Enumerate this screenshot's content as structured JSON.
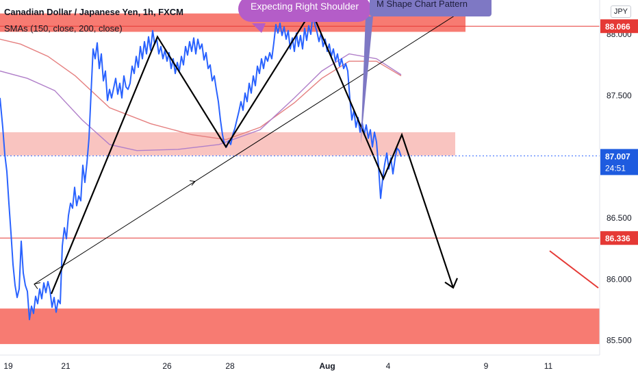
{
  "header": {
    "symbol": "Canadian Dollar / Japanese Yen, 1h, FXCM",
    "indicator": "SMAs (150, close, 200, close)",
    "currency_badge": "JPY"
  },
  "annotations": {
    "callout": "Expecting Right Shoulder",
    "note": "M Shape Chart Pattern"
  },
  "colors": {
    "price": "#2962ff",
    "zone": "#f77b72",
    "zone_light": "#f9c4c0",
    "level": "#e53935",
    "sma150": "#b07fc9",
    "sma200": "#e57f7f",
    "pattern": "#000000",
    "callout": "#b45dc8",
    "note": "#7e78c4",
    "current_label": "#1e5bdf"
  },
  "chart_data": {
    "type": "line",
    "title": "Canadian Dollar / Japanese Yen, 1h, FXCM",
    "xlabel": "",
    "ylabel": "",
    "ylim": [
      85.38,
      88.28
    ],
    "x_ticks": [
      "19",
      "21",
      "26",
      "28",
      "Aug",
      "4",
      "9",
      "11"
    ],
    "y_ticks": [
      "85.500",
      "86.000",
      "86.500",
      "87.000",
      "87.500",
      "88.000"
    ],
    "series": [
      {
        "name": "",
        "values": [
          [
            0.0,
            87.48
          ],
          [
            4.0,
            87.24
          ],
          [
            7.0,
            87.02
          ],
          [
            10.0,
            86.88
          ],
          [
            13.0,
            86.62
          ],
          [
            16.0,
            86.38
          ],
          [
            19.0,
            86.12
          ],
          [
            22.0,
            85.95
          ],
          [
            25.0,
            85.85
          ],
          [
            28.0,
            85.92
          ],
          [
            31.0,
            86.31
          ],
          [
            34.0,
            86.05
          ],
          [
            37.0,
            85.95
          ],
          [
            40.0,
            85.9
          ],
          [
            43.0,
            85.67
          ],
          [
            46.0,
            85.78
          ],
          [
            49.0,
            85.72
          ],
          [
            52.0,
            85.86
          ],
          [
            55.0,
            85.8
          ],
          [
            58.0,
            85.92
          ],
          [
            61.0,
            85.84
          ],
          [
            64.0,
            85.97
          ],
          [
            67.0,
            85.89
          ],
          [
            70.0,
            85.98
          ],
          [
            73.0,
            85.91
          ],
          [
            76.0,
            85.77
          ],
          [
            79.0,
            85.85
          ],
          [
            82.0,
            85.73
          ],
          [
            85.0,
            85.83
          ],
          [
            88.0,
            85.8
          ],
          [
            91.0,
            86.27
          ],
          [
            94.0,
            86.42
          ],
          [
            97.0,
            86.33
          ],
          [
            100.0,
            86.52
          ],
          [
            103.0,
            86.62
          ],
          [
            106.0,
            86.58
          ],
          [
            109.0,
            86.75
          ],
          [
            112.0,
            86.6
          ],
          [
            115.0,
            86.68
          ],
          [
            118.0,
            86.64
          ],
          [
            121.0,
            86.93
          ],
          [
            124.0,
            86.79
          ],
          [
            127.0,
            86.95
          ],
          [
            130.0,
            87.15
          ],
          [
            133.0,
            87.52
          ],
          [
            136.0,
            87.88
          ],
          [
            139.0,
            87.8
          ],
          [
            142.0,
            87.93
          ],
          [
            145.0,
            87.72
          ],
          [
            148.0,
            87.84
          ],
          [
            151.0,
            87.62
          ],
          [
            154.0,
            87.7
          ],
          [
            157.0,
            87.46
          ],
          [
            160.0,
            87.55
          ],
          [
            163.0,
            87.48
          ],
          [
            166.0,
            87.56
          ],
          [
            169.0,
            87.64
          ],
          [
            172.0,
            87.51
          ],
          [
            175.0,
            87.6
          ],
          [
            178.0,
            87.48
          ],
          [
            181.0,
            87.66
          ],
          [
            184.0,
            87.57
          ],
          [
            187.0,
            87.55
          ],
          [
            190.0,
            87.6
          ],
          [
            193.0,
            87.74
          ],
          [
            196.0,
            87.68
          ],
          [
            199.0,
            87.82
          ],
          [
            202.0,
            87.73
          ],
          [
            205.0,
            87.9
          ],
          [
            208.0,
            87.8
          ],
          [
            211.0,
            87.94
          ],
          [
            214.0,
            87.84
          ],
          [
            217.0,
            87.98
          ],
          [
            220.0,
            87.87
          ],
          [
            223.0,
            88.03
          ],
          [
            226.0,
            87.92
          ],
          [
            229.0,
            87.96
          ],
          [
            232.0,
            87.84
          ],
          [
            235.0,
            87.9
          ],
          [
            238.0,
            87.8
          ],
          [
            241.0,
            87.87
          ],
          [
            244.0,
            87.78
          ],
          [
            247.0,
            87.85
          ],
          [
            250.0,
            87.72
          ],
          [
            253.0,
            87.8
          ],
          [
            256.0,
            87.68
          ],
          [
            259.0,
            87.77
          ],
          [
            262.0,
            87.7
          ],
          [
            265.0,
            87.82
          ],
          [
            268.0,
            87.75
          ],
          [
            271.0,
            87.9
          ],
          [
            274.0,
            87.83
          ],
          [
            277.0,
            87.94
          ],
          [
            280.0,
            87.86
          ],
          [
            283.0,
            87.97
          ],
          [
            286.0,
            87.84
          ],
          [
            289.0,
            87.96
          ],
          [
            292.0,
            87.88
          ],
          [
            295.0,
            87.92
          ],
          [
            298.0,
            87.79
          ],
          [
            301.0,
            87.85
          ],
          [
            304.0,
            87.72
          ],
          [
            307.0,
            87.75
          ],
          [
            310.0,
            87.62
          ],
          [
            313.0,
            87.66
          ],
          [
            316.0,
            87.55
          ],
          [
            319.0,
            87.45
          ],
          [
            322.0,
            87.3
          ],
          [
            325.0,
            87.18
          ],
          [
            328.0,
            87.1
          ],
          [
            331.0,
            87.08
          ],
          [
            334.0,
            87.13
          ],
          [
            337.0,
            87.1
          ],
          [
            340.0,
            87.18
          ],
          [
            343.0,
            87.23
          ],
          [
            346.0,
            87.3
          ],
          [
            349.0,
            87.37
          ],
          [
            352.0,
            87.45
          ],
          [
            355.0,
            87.38
          ],
          [
            358.0,
            87.52
          ],
          [
            361.0,
            87.45
          ],
          [
            364.0,
            87.6
          ],
          [
            367.0,
            87.52
          ],
          [
            370.0,
            87.66
          ],
          [
            373.0,
            87.58
          ],
          [
            376.0,
            87.74
          ],
          [
            379.0,
            87.68
          ],
          [
            382.0,
            87.8
          ],
          [
            385.0,
            87.72
          ],
          [
            388.0,
            87.82
          ],
          [
            391.0,
            87.78
          ],
          [
            394.0,
            87.85
          ],
          [
            397.0,
            87.8
          ],
          [
            400.0,
            87.93
          ],
          [
            403.0,
            88.08
          ],
          [
            406.0,
            88.01
          ],
          [
            409.0,
            88.09
          ],
          [
            412.0,
            87.99
          ],
          [
            415.0,
            88.06
          ],
          [
            418.0,
            87.96
          ],
          [
            421.0,
            88.03
          ],
          [
            424.0,
            87.88
          ],
          [
            427.0,
            87.97
          ],
          [
            430.0,
            87.86
          ],
          [
            433.0,
            88.01
          ],
          [
            436.0,
            87.9
          ],
          [
            439.0,
            87.99
          ],
          [
            442.0,
            87.88
          ],
          [
            445.0,
            88.05
          ],
          [
            448.0,
            87.95
          ],
          [
            451.0,
            88.07
          ],
          [
            454.0,
            88.0
          ],
          [
            457.0,
            88.16
          ],
          [
            460.0,
            88.08
          ],
          [
            463.0,
            88.02
          ],
          [
            466.0,
            87.94
          ],
          [
            469.0,
            88.01
          ],
          [
            472.0,
            87.9
          ],
          [
            475.0,
            87.96
          ],
          [
            478.0,
            87.86
          ],
          [
            481.0,
            87.92
          ],
          [
            484.0,
            87.82
          ],
          [
            487.0,
            87.88
          ],
          [
            490.0,
            87.78
          ],
          [
            493.0,
            87.84
          ],
          [
            496.0,
            87.74
          ],
          [
            499.0,
            87.8
          ],
          [
            502.0,
            87.72
          ],
          [
            505.0,
            87.76
          ],
          [
            508.0,
            87.7
          ],
          [
            511.0,
            87.48
          ],
          [
            514.0,
            87.3
          ],
          [
            517.0,
            87.38
          ],
          [
            520.0,
            87.24
          ],
          [
            523.0,
            87.32
          ],
          [
            526.0,
            87.2
          ],
          [
            529.0,
            87.28
          ],
          [
            532.0,
            87.18
          ],
          [
            535.0,
            87.26
          ],
          [
            538.0,
            87.15
          ],
          [
            541.0,
            87.22
          ],
          [
            544.0,
            87.08
          ],
          [
            547.0,
            87.2
          ],
          [
            550.0,
            87.12
          ],
          [
            553.0,
            86.92
          ],
          [
            556.0,
            86.66
          ],
          [
            559.0,
            86.82
          ],
          [
            562.0,
            86.94
          ],
          [
            565.0,
            87.03
          ],
          [
            568.0,
            86.9
          ],
          [
            571.0,
            86.99
          ],
          [
            574.0,
            86.86
          ],
          [
            577.0,
            86.98
          ],
          [
            580.0,
            87.07
          ],
          [
            583.0,
            87.05
          ],
          [
            586.0,
            87.0
          ]
        ]
      },
      {
        "name": "SMA 150",
        "values": [
          [
            0,
            87.7
          ],
          [
            40,
            87.64
          ],
          [
            80,
            87.54
          ],
          [
            120,
            87.3
          ],
          [
            160,
            87.1
          ],
          [
            200,
            87.05
          ],
          [
            260,
            87.06
          ],
          [
            320,
            87.1
          ],
          [
            380,
            87.22
          ],
          [
            430,
            87.48
          ],
          [
            470,
            87.7
          ],
          [
            510,
            87.84
          ],
          [
            550,
            87.8
          ],
          [
            586,
            87.67
          ]
        ]
      },
      {
        "name": "SMA 200",
        "values": [
          [
            0,
            87.96
          ],
          [
            30,
            87.92
          ],
          [
            70,
            87.82
          ],
          [
            110,
            87.66
          ],
          [
            160,
            87.4
          ],
          [
            220,
            87.27
          ],
          [
            280,
            87.18
          ],
          [
            330,
            87.14
          ],
          [
            380,
            87.24
          ],
          [
            430,
            87.44
          ],
          [
            470,
            87.64
          ],
          [
            510,
            87.78
          ],
          [
            550,
            87.78
          ],
          [
            586,
            87.66
          ]
        ]
      }
    ],
    "zones": [
      {
        "low": 88.02,
        "high": 88.17
      },
      {
        "low": 87.01,
        "high": 87.2,
        "light": true
      },
      {
        "low": 85.47,
        "high": 85.76
      }
    ],
    "levels": [
      {
        "value": 88.066,
        "label": "88.066"
      },
      {
        "value": 86.336,
        "label": "86.336"
      }
    ],
    "current": {
      "value": 87.007,
      "label": "87.007",
      "countdown": "24:51"
    },
    "pattern_path": [
      [
        75,
        85.88
      ],
      [
        230,
        87.98
      ],
      [
        330,
        87.08
      ],
      [
        455,
        88.19
      ],
      [
        560,
        86.82
      ],
      [
        587,
        87.18
      ],
      [
        662,
        85.93
      ]
    ],
    "trendline": [
      [
        50,
        85.96
      ],
      [
        700,
        88.28
      ]
    ]
  }
}
